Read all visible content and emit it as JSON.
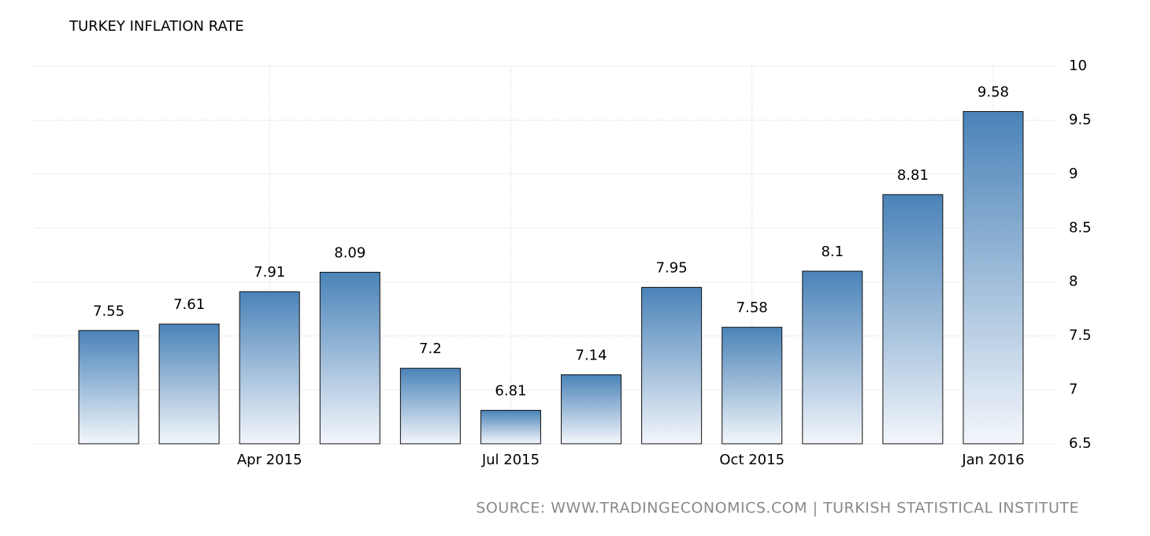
{
  "chart_data": {
    "type": "bar",
    "title": "TURKEY INFLATION RATE",
    "categories": [
      null,
      null,
      "Apr 2015",
      null,
      null,
      "Jul 2015",
      null,
      null,
      "Oct 2015",
      null,
      null,
      "Jan 2016"
    ],
    "values": [
      7.55,
      7.61,
      7.91,
      8.09,
      7.2,
      6.81,
      7.14,
      7.95,
      7.58,
      8.1,
      8.81,
      9.58
    ],
    "color": "#4a83b8",
    "ylim": [
      6.5,
      10
    ],
    "yticks": [
      6.5,
      7,
      7.5,
      8,
      8.5,
      9,
      9.5,
      10
    ],
    "grid": true,
    "source": "SOURCE:  WWW.TRADINGECONOMICS.COM  |  TURKISH STATISTICAL INSTITUTE"
  }
}
